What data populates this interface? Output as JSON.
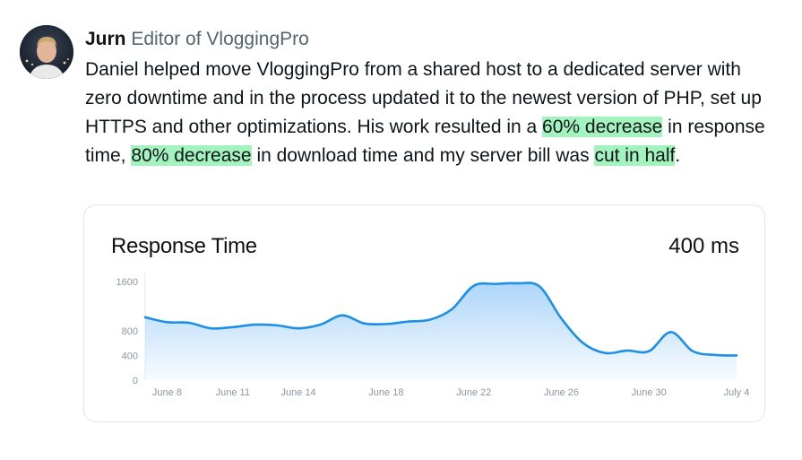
{
  "author": {
    "name": "Jurn",
    "role": "Editor of VloggingPro"
  },
  "testimonial": {
    "p1": "Daniel helped move VloggingPro from a shared host to a dedicated server with zero downtime and in the process updated it to the newest version of PHP, set up HTTPS and other optimizations. His work resulted in a ",
    "h1": "60% decrease",
    "p2": " in response time, ",
    "h2": "80% decrease",
    "p3": " in download time and my server bill was ",
    "h3": "cut in half",
    "p4": "."
  },
  "colors": {
    "highlight": "#a3f3be",
    "line": "#1e8fe6",
    "area_top": "#a9d4f8"
  },
  "card": {
    "title": "Response Time",
    "value": "400 ms"
  },
  "chart_data": {
    "type": "area",
    "title": "Response Time",
    "ylim": [
      0,
      1700
    ],
    "yticks": [
      0,
      400,
      800,
      1600
    ],
    "ytick_labels": [
      "0",
      "400",
      "800",
      "1600"
    ],
    "xticks": [
      {
        "label": "June 8",
        "day": 8
      },
      {
        "label": "June 11",
        "day": 11
      },
      {
        "label": "June 14",
        "day": 14
      },
      {
        "label": "June 18",
        "day": 18
      },
      {
        "label": "June 22",
        "day": 22
      },
      {
        "label": "June 26",
        "day": 26
      },
      {
        "label": "June 30",
        "day": 30
      },
      {
        "label": "July 4",
        "day": 34
      }
    ],
    "x": [
      7,
      8,
      9,
      10,
      11,
      12,
      13,
      14,
      15,
      16,
      17,
      18,
      19,
      20,
      21,
      22,
      23,
      24,
      25,
      26,
      27,
      28,
      29,
      30,
      31,
      32,
      33,
      34
    ],
    "values": [
      1020,
      940,
      930,
      840,
      860,
      900,
      890,
      840,
      900,
      1050,
      920,
      910,
      950,
      980,
      1150,
      1530,
      1560,
      1570,
      1520,
      1000,
      600,
      440,
      480,
      470,
      780,
      470,
      410,
      400
    ]
  }
}
